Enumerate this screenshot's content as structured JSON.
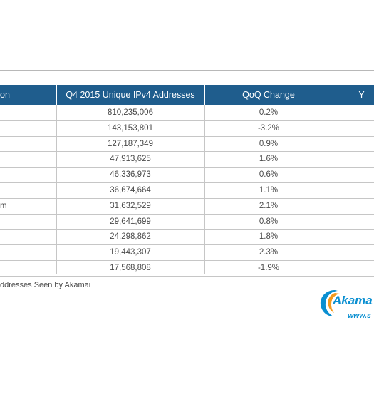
{
  "table": {
    "headers": [
      "on",
      "Q4 2015 Unique IPv4 Addresses",
      "QoQ Change",
      "Y"
    ],
    "rows": [
      {
        "c0": "",
        "c1": "810,235,006",
        "c2": "0.2%"
      },
      {
        "c0": "",
        "c1": "143,153,801",
        "c2": "-3.2%"
      },
      {
        "c0": "",
        "c1": "127,187,349",
        "c2": "0.9%"
      },
      {
        "c0": "",
        "c1": "47,913,625",
        "c2": "1.6%"
      },
      {
        "c0": "",
        "c1": "46,336,973",
        "c2": "0.6%"
      },
      {
        "c0": "",
        "c1": "36,674,664",
        "c2": "1.1%"
      },
      {
        "c0": "m",
        "c1": "31,632,529",
        "c2": "2.1%"
      },
      {
        "c0": "",
        "c1": "29,641,699",
        "c2": "0.8%"
      },
      {
        "c0": "",
        "c1": "24,298,862",
        "c2": "1.8%"
      },
      {
        "c0": "",
        "c1": "19,443,307",
        "c2": "2.3%"
      },
      {
        "c0": "",
        "c1": "17,568,808",
        "c2": "-1.9%"
      }
    ]
  },
  "caption": "ddresses Seen by Akamai",
  "logo": {
    "text": "Akama",
    "url": "www.s"
  },
  "colors": {
    "header_bg": "#1f5d8d",
    "brand": "#0a8fd1",
    "swirl": "#f39a1e"
  }
}
